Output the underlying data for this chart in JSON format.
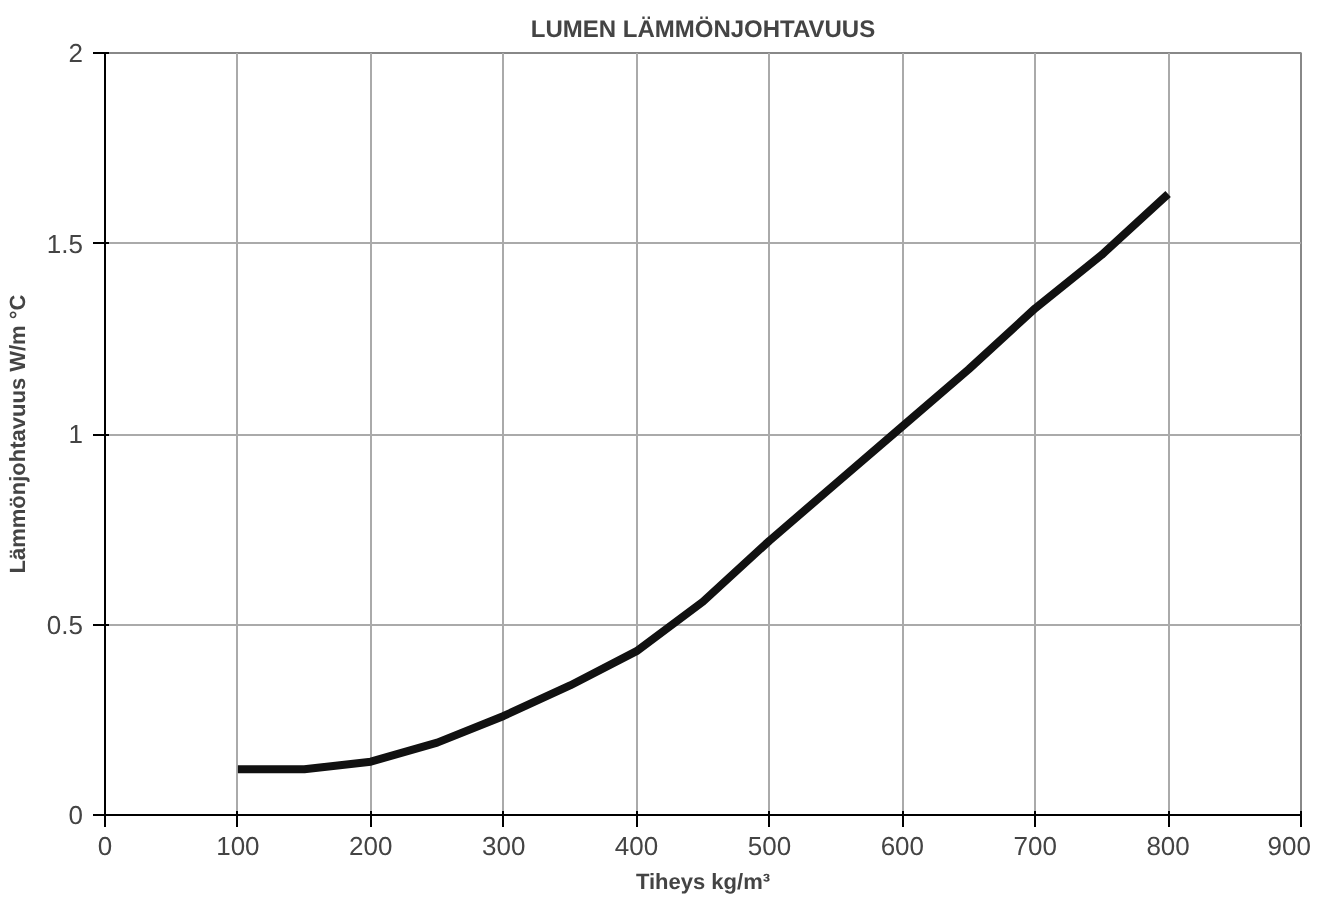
{
  "chart_data": {
    "type": "line",
    "title": "LUMEN LÄMMÖNJOHTAVUUS",
    "xlabel": "Tiheys kg/m³",
    "ylabel": "Lämmönjohtavuus W/m °C",
    "x": [
      100,
      150,
      200,
      250,
      300,
      350,
      400,
      450,
      500,
      550,
      600,
      650,
      700,
      750,
      800
    ],
    "series": [
      {
        "color": "#111111",
        "values": [
          0.12,
          0.12,
          0.14,
          0.19,
          0.26,
          0.34,
          0.43,
          0.56,
          0.72,
          0.87,
          1.02,
          1.17,
          1.33,
          1.47,
          1.63
        ]
      }
    ],
    "xlim": [
      0,
      900
    ],
    "ylim": [
      0,
      2
    ],
    "xticks": [
      0,
      100,
      200,
      300,
      400,
      500,
      600,
      700,
      800,
      900
    ],
    "yticks": [
      0,
      0.5,
      1,
      1.5,
      2
    ],
    "grid": true,
    "marker": "none",
    "line_style": "solid"
  }
}
